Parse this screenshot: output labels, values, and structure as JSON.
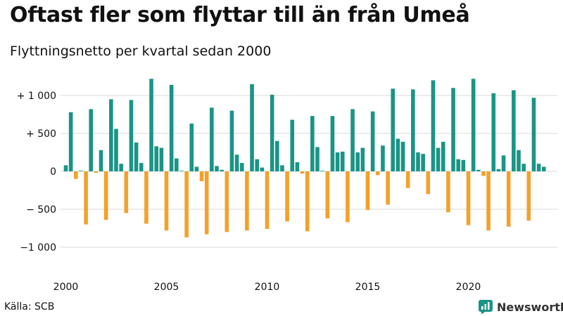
{
  "header": {
    "title": "Oftast fler som flyttar till än från Umeå",
    "subtitle": "Flyttningsnetto per kvartal sedan 2000"
  },
  "footer": {
    "source": "Källa: SCB",
    "brand": "Newsworthy"
  },
  "colors": {
    "positive": "#1a9486",
    "negative": "#f3a12a",
    "gridline": "#d9d9d9",
    "text": "#111111"
  },
  "chart_data": {
    "type": "bar",
    "x_start": 2000,
    "quarters_per_year": 4,
    "x_ticks": [
      "2000",
      "2005",
      "2010",
      "2015",
      "2020"
    ],
    "y_ticks": [
      {
        "value": 1000,
        "label": "+ 1 000"
      },
      {
        "value": 500,
        "label": "+   500"
      },
      {
        "value": 0,
        "label": "0"
      },
      {
        "value": -500,
        "label": "− 500"
      },
      {
        "value": -1000,
        "label": "−1 000"
      }
    ],
    "ylim": [
      -1250,
      1250
    ],
    "grid": true,
    "values": [
      80,
      780,
      -100,
      0,
      -700,
      820,
      -20,
      280,
      -640,
      950,
      560,
      100,
      -550,
      940,
      380,
      110,
      -690,
      1220,
      330,
      310,
      -780,
      1140,
      170,
      0,
      -870,
      630,
      60,
      -130,
      -830,
      840,
      70,
      20,
      -800,
      800,
      220,
      110,
      -780,
      1150,
      160,
      50,
      -760,
      1010,
      400,
      80,
      -660,
      680,
      120,
      -30,
      -790,
      730,
      320,
      0,
      -620,
      730,
      250,
      260,
      -670,
      820,
      250,
      310,
      -510,
      790,
      -50,
      340,
      -440,
      1090,
      430,
      390,
      -220,
      1080,
      250,
      230,
      -300,
      1200,
      310,
      390,
      -540,
      1100,
      160,
      150,
      -710,
      1220,
      20,
      -60,
      -780,
      1030,
      30,
      210,
      -730,
      1070,
      280,
      100,
      -650,
      970,
      100,
      60
    ]
  }
}
